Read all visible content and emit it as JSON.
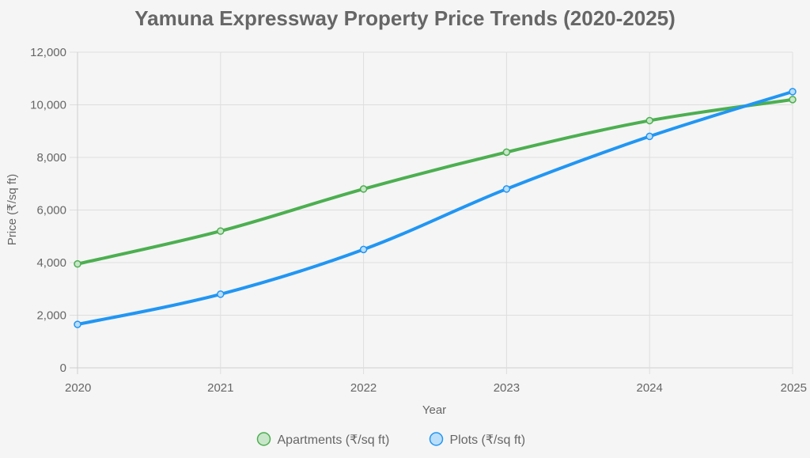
{
  "chart_data": {
    "type": "line",
    "title": "Yamuna Expressway Property Price Trends (2020-2025)",
    "xlabel": "Year",
    "ylabel": "Price (₹/sq ft)",
    "categories": [
      "2020",
      "2021",
      "2022",
      "2023",
      "2024",
      "2025"
    ],
    "ylim": [
      0,
      12000
    ],
    "yticks": [
      0,
      2000,
      4000,
      6000,
      8000,
      10000,
      12000
    ],
    "ytick_labels": [
      "0",
      "2,000",
      "4,000",
      "6,000",
      "8,000",
      "10,000",
      "12,000"
    ],
    "grid": true,
    "legend_position": "bottom",
    "series": [
      {
        "name": "Apartments (₹/sq ft)",
        "values": [
          3950,
          5200,
          6800,
          8200,
          9400,
          10200
        ],
        "color": "#4caf50",
        "fill": "#c8e6c9"
      },
      {
        "name": "Plots (₹/sq ft)",
        "values": [
          1650,
          2800,
          4500,
          6800,
          8800,
          10500
        ],
        "color": "#2196f3",
        "fill": "#bbdefb"
      }
    ]
  }
}
